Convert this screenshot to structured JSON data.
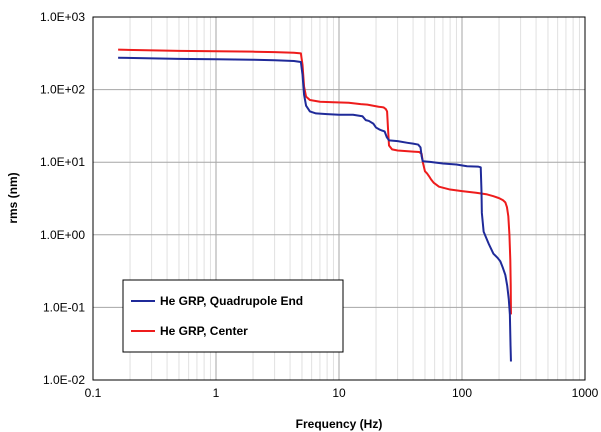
{
  "chart_data": {
    "type": "line",
    "title": "",
    "xlabel": "Frequency (Hz)",
    "ylabel": "rms (nm)",
    "x_scale": "log",
    "y_scale": "log",
    "xlim": [
      0.1,
      1000
    ],
    "ylim": [
      0.01,
      1000
    ],
    "x_ticks": [
      0.1,
      1,
      10,
      100,
      1000
    ],
    "x_tick_labels": [
      "0.1",
      "1",
      "10",
      "100",
      "1000"
    ],
    "y_ticks": [
      0.01,
      0.1,
      1,
      10,
      100,
      1000
    ],
    "y_tick_labels": [
      "1.0E-02",
      "1.0E-01",
      "1.0E+00",
      "1.0E+01",
      "1.0E+02",
      "1.0E+03"
    ],
    "grid": {
      "x_major": true,
      "x_minor": true,
      "y_major": true
    },
    "legend_position": "bottom-left",
    "series": [
      {
        "name": "He GRP, Quadrupole End",
        "color": "#1f2a99",
        "points": [
          [
            0.16,
            275
          ],
          [
            0.5,
            265
          ],
          [
            1,
            262
          ],
          [
            2,
            258
          ],
          [
            3,
            254
          ],
          [
            4.3,
            248
          ],
          [
            4.9,
            240
          ],
          [
            5.05,
            160
          ],
          [
            5.2,
            85
          ],
          [
            5.4,
            60
          ],
          [
            5.8,
            50
          ],
          [
            6.5,
            47
          ],
          [
            8,
            46
          ],
          [
            10,
            45
          ],
          [
            13,
            45
          ],
          [
            15.5,
            43
          ],
          [
            16.5,
            38
          ],
          [
            17.5,
            37
          ],
          [
            19,
            34
          ],
          [
            20,
            30
          ],
          [
            21.5,
            28
          ],
          [
            23.5,
            26.5
          ],
          [
            24.5,
            22
          ],
          [
            25.5,
            20
          ],
          [
            30,
            19.5
          ],
          [
            36,
            18.5
          ],
          [
            40,
            18
          ],
          [
            44,
            17.5
          ],
          [
            46,
            16
          ],
          [
            47,
            12
          ],
          [
            48,
            10.3
          ],
          [
            55,
            10.1
          ],
          [
            70,
            9.6
          ],
          [
            90,
            9.3
          ],
          [
            110,
            8.8
          ],
          [
            135,
            8.7
          ],
          [
            142,
            8.5
          ],
          [
            144,
            4
          ],
          [
            145,
            2
          ],
          [
            150,
            1.1
          ],
          [
            165,
            0.75
          ],
          [
            180,
            0.55
          ],
          [
            195,
            0.48
          ],
          [
            205,
            0.43
          ],
          [
            215,
            0.35
          ],
          [
            225,
            0.28
          ],
          [
            233,
            0.2
          ],
          [
            240,
            0.13
          ],
          [
            245,
            0.08
          ],
          [
            248,
            0.03
          ],
          [
            250,
            0.018
          ]
        ]
      },
      {
        "name": "He GRP, Center",
        "color": "#ee1c1c",
        "points": [
          [
            0.16,
            355
          ],
          [
            0.5,
            342
          ],
          [
            1,
            338
          ],
          [
            2,
            333
          ],
          [
            3,
            328
          ],
          [
            4.3,
            322
          ],
          [
            4.9,
            315
          ],
          [
            5.05,
            220
          ],
          [
            5.2,
            110
          ],
          [
            5.4,
            80
          ],
          [
            5.8,
            72
          ],
          [
            7,
            68
          ],
          [
            9,
            67
          ],
          [
            12,
            66
          ],
          [
            15,
            63
          ],
          [
            17,
            62
          ],
          [
            19,
            60
          ],
          [
            21,
            58
          ],
          [
            23,
            57
          ],
          [
            24,
            54
          ],
          [
            24.6,
            50
          ],
          [
            25,
            30
          ],
          [
            25.5,
            17
          ],
          [
            27,
            15
          ],
          [
            30,
            14.5
          ],
          [
            40,
            14
          ],
          [
            45,
            13.8
          ],
          [
            47,
            13
          ],
          [
            48,
            10
          ],
          [
            50,
            7.5
          ],
          [
            52,
            7
          ],
          [
            54,
            6.4
          ],
          [
            56,
            5.8
          ],
          [
            59,
            5.2
          ],
          [
            65,
            4.6
          ],
          [
            80,
            4.2
          ],
          [
            100,
            4.0
          ],
          [
            130,
            3.8
          ],
          [
            160,
            3.6
          ],
          [
            180,
            3.4
          ],
          [
            200,
            3.2
          ],
          [
            215,
            3.0
          ],
          [
            225,
            2.8
          ],
          [
            232,
            2.4
          ],
          [
            238,
            1.8
          ],
          [
            243,
            1.0
          ],
          [
            247,
            0.45
          ],
          [
            249,
            0.2
          ],
          [
            250,
            0.08
          ]
        ]
      }
    ]
  }
}
